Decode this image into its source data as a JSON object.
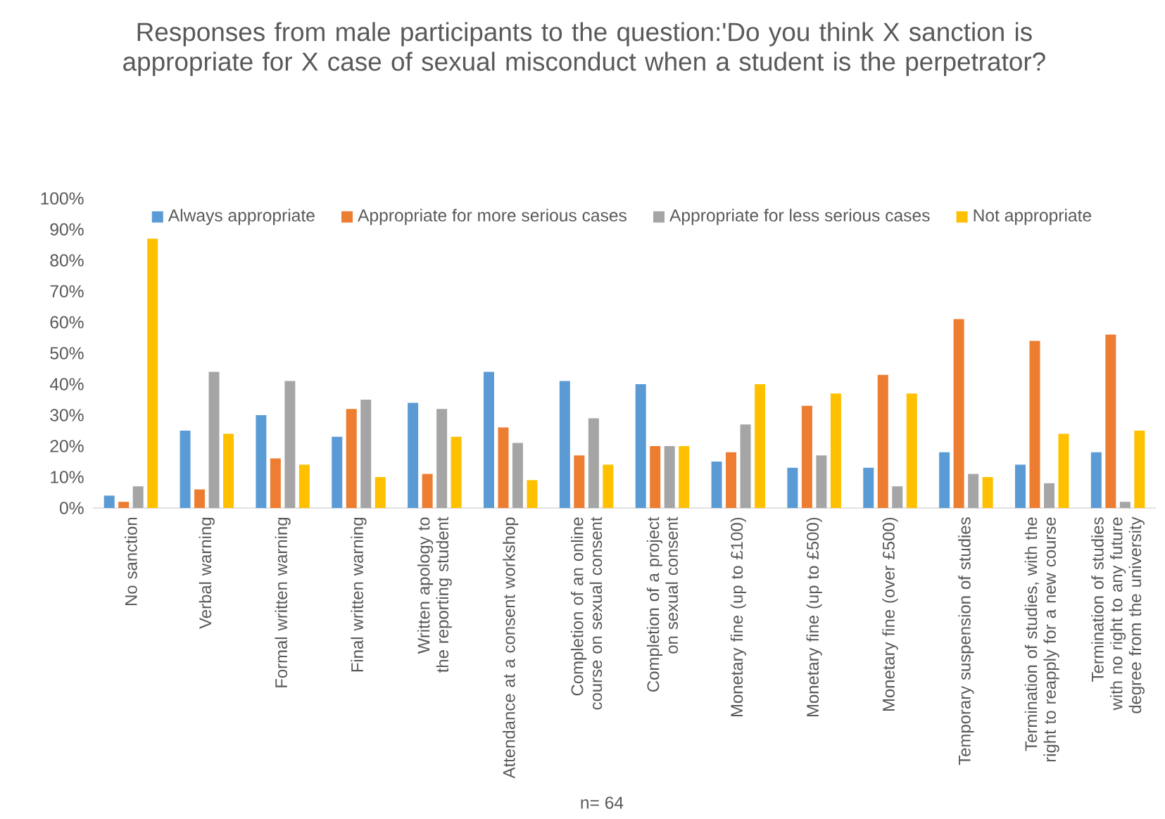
{
  "chart_data": {
    "type": "bar",
    "title": "Responses from male participants to the question:'Do you think X sanction is appropriate for X case of sexual misconduct when a student is the perpetrator?",
    "categories": [
      "No sanction",
      "Verbal warning",
      "Formal written warning",
      "Final written warning",
      "Written apology to the reporting student",
      "Attendance at a consent workshop",
      "Completion of an online course on sexual consent",
      "Completion of a project on sexual consent",
      "Monetary fine (up to £100)",
      "Monetary fine (up to £500)",
      "Monetary fine (over £500)",
      "Temporary suspension of studies",
      "Termination of studies, with the right to reapply for a new course",
      "Termination of studies with no right to any future degree from the university"
    ],
    "series": [
      {
        "name": "Always appropriate",
        "color": "#5b9bd5",
        "values": [
          4,
          25,
          30,
          23,
          34,
          44,
          41,
          40,
          15,
          13,
          13,
          18,
          14,
          18
        ]
      },
      {
        "name": "Appropriate for more serious cases",
        "color": "#ed7d31",
        "values": [
          2,
          6,
          16,
          32,
          11,
          26,
          17,
          20,
          18,
          33,
          43,
          61,
          54,
          56
        ]
      },
      {
        "name": "Appropriate for less serious cases",
        "color": "#a5a5a5",
        "values": [
          7,
          44,
          41,
          35,
          32,
          21,
          29,
          20,
          27,
          17,
          7,
          11,
          8,
          2
        ]
      },
      {
        "name": "Not appropriate",
        "color": "#ffc000",
        "values": [
          87,
          24,
          14,
          10,
          23,
          9,
          14,
          20,
          40,
          37,
          37,
          10,
          24,
          25
        ]
      }
    ],
    "ylim": [
      0,
      100
    ],
    "yticks": [
      {
        "value": 0,
        "label": "0%"
      },
      {
        "value": 10,
        "label": "10%"
      },
      {
        "value": 20,
        "label": "20%"
      },
      {
        "value": 30,
        "label": "30%"
      },
      {
        "value": 40,
        "label": "40%"
      },
      {
        "value": 50,
        "label": "50%"
      },
      {
        "value": 60,
        "label": "60%"
      },
      {
        "value": 70,
        "label": "70%"
      },
      {
        "value": 80,
        "label": "80%"
      },
      {
        "value": 90,
        "label": "90%"
      },
      {
        "value": 100,
        "label": "100%"
      }
    ],
    "legend": "top",
    "annotations": [
      "n= 64"
    ]
  }
}
